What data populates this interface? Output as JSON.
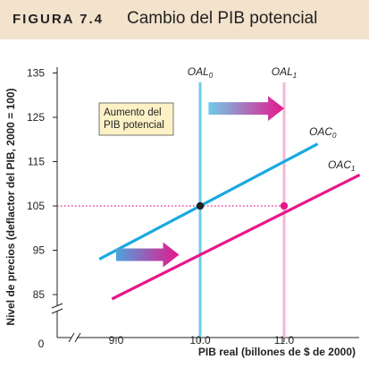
{
  "figure": {
    "number": "FIGURA 7.4",
    "title": "Cambio del PIB potencial"
  },
  "colors": {
    "header_bg": "#f3e2cc",
    "oac0": "#1aa9e1",
    "oac1": "#e8168c",
    "oal0": "#6fcbe9",
    "oal1": "#f2b8d6",
    "annotation_bg": "#fdf1c6",
    "dotted_line": "#e8168c"
  },
  "chart_data": {
    "type": "line",
    "xlabel": "PIB real (billones de $ de 2000)",
    "ylabel": "Nivel de precios (deflactor del PIB, 2000 = 100)",
    "x_ticks": [
      "9.0",
      "10.0",
      "11.0"
    ],
    "y_ticks": [
      "135",
      "125",
      "115",
      "105",
      "95",
      "85"
    ],
    "origin_label": "0",
    "axis_breaks": true,
    "xlim": [
      8.5,
      11.9
    ],
    "ylim": [
      80,
      137
    ],
    "series": [
      {
        "name": "OAC",
        "subscript": "0",
        "color": "#1aa9e1",
        "x": [
          8.8,
          11.4
        ],
        "y": [
          93,
          119
        ]
      },
      {
        "name": "OAC",
        "subscript": "1",
        "color": "#e8168c",
        "x": [
          8.95,
          11.9
        ],
        "y": [
          84,
          112
        ]
      }
    ],
    "vertical_lines": [
      {
        "name": "OAL",
        "subscript": "0",
        "x": 10.0,
        "color": "#6fcbe9"
      },
      {
        "name": "OAL",
        "subscript": "1",
        "x": 11.0,
        "color": "#f2b8d6"
      }
    ],
    "points": [
      {
        "x": 10.0,
        "y": 105,
        "color": "#222222"
      },
      {
        "x": 11.0,
        "y": 105,
        "color": "#e8168c"
      }
    ],
    "reference_line": {
      "y": 105,
      "style": "dotted",
      "color": "#e8168c"
    },
    "arrows": [
      {
        "from_x": 10.1,
        "to_x": 11.0,
        "y": 127,
        "direction": "right"
      },
      {
        "from_x": 9.0,
        "to_x": 9.75,
        "y": 94,
        "direction": "right"
      }
    ],
    "annotation": {
      "text_lines": [
        "Aumento del",
        "PIB potencial"
      ]
    }
  }
}
